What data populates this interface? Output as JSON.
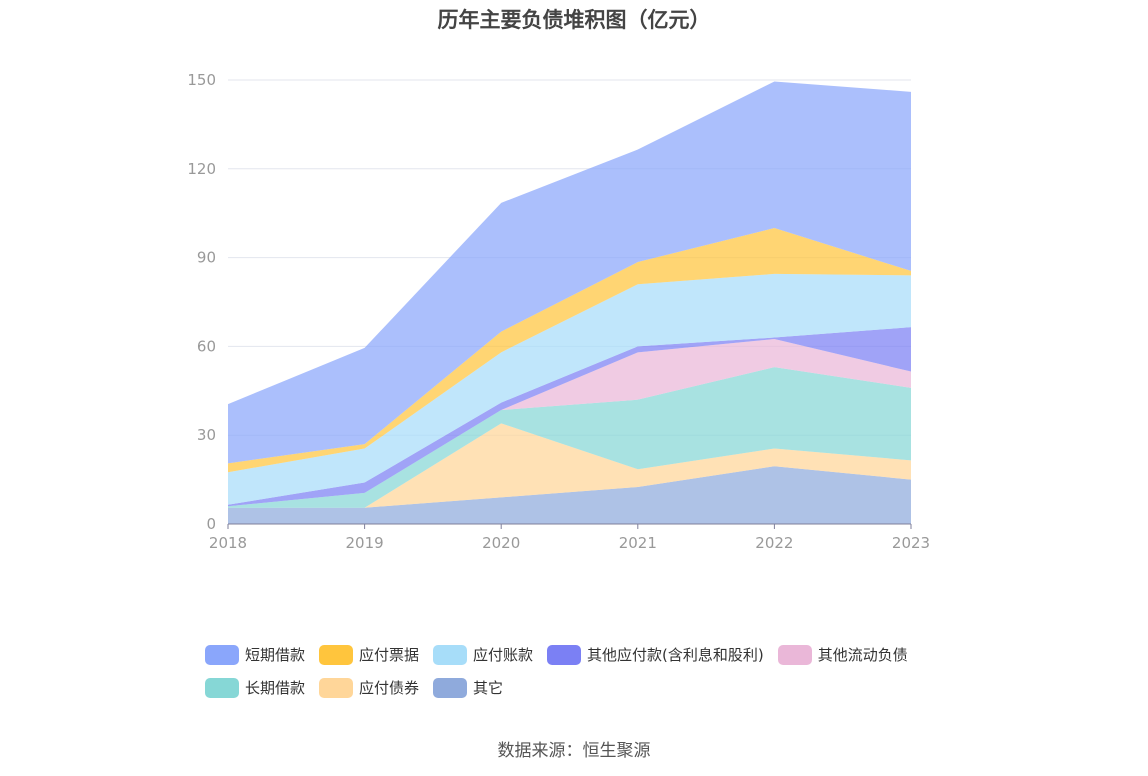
{
  "title": "历年主要负债堆积图（亿元）",
  "source": "数据来源：恒生聚源",
  "chart_data": {
    "type": "area",
    "stacked": true,
    "x": [
      "2018",
      "2019",
      "2020",
      "2021",
      "2022",
      "2023"
    ],
    "ylim": [
      0,
      150
    ],
    "yticks": [
      0,
      30,
      60,
      90,
      120,
      150
    ],
    "grid": true,
    "legend_position": "bottom",
    "series": [
      {
        "name": "其它",
        "color": "#8FAADC",
        "values": [
          5.5,
          5.5,
          9.0,
          12.5,
          19.5,
          15.0
        ]
      },
      {
        "name": "应付债券",
        "color": "#FFD699",
        "values": [
          0,
          0,
          25.0,
          6.0,
          6.0,
          6.5
        ]
      },
      {
        "name": "长期借款",
        "color": "#86D7D6",
        "values": [
          0.5,
          5.0,
          4.5,
          23.5,
          27.5,
          24.5
        ]
      },
      {
        "name": "其他流动负债",
        "color": "#EAB7D8",
        "values": [
          0,
          0,
          0,
          16.0,
          9.5,
          5.5
        ]
      },
      {
        "name": "其他应付款(含利息和股利)",
        "color": "#7B80F4",
        "values": [
          0.5,
          3.5,
          2.5,
          2.0,
          0.5,
          15.0
        ]
      },
      {
        "name": "应付账款",
        "color": "#A7DDF9",
        "values": [
          11.0,
          11.5,
          17.0,
          21.0,
          21.5,
          17.5
        ]
      },
      {
        "name": "应付票据",
        "color": "#FFC53D",
        "values": [
          3.0,
          1.5,
          7.0,
          7.5,
          15.5,
          1.5
        ]
      },
      {
        "name": "短期借款",
        "color": "#8AA6FB",
        "values": [
          20.0,
          32.5,
          43.5,
          38.0,
          49.5,
          60.5
        ]
      }
    ]
  },
  "legend": {
    "row1": [
      {
        "label": "短期借款",
        "color": "#8AA6FB"
      },
      {
        "label": "应付票据",
        "color": "#FFC53D"
      },
      {
        "label": "应付账款",
        "color": "#A7DDF9"
      },
      {
        "label": "其他应付款(含利息和股利)",
        "color": "#7B80F4"
      },
      {
        "label": "其他流动负债",
        "color": "#EAB7D8"
      }
    ],
    "row2": [
      {
        "label": "长期借款",
        "color": "#86D7D6"
      },
      {
        "label": "应付债券",
        "color": "#FFD699"
      },
      {
        "label": "其它",
        "color": "#8FAADC"
      }
    ]
  }
}
